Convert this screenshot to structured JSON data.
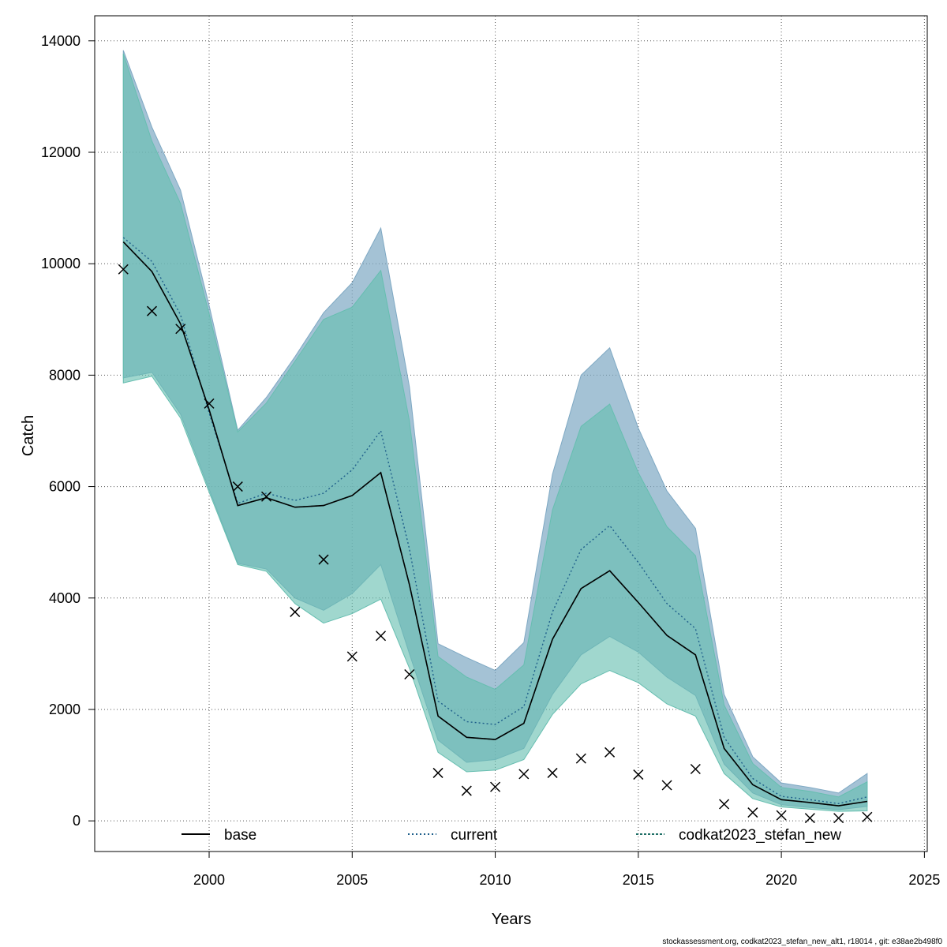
{
  "chart_data": {
    "type": "line",
    "title": "",
    "xlabel": "Years",
    "ylabel": "Catch",
    "xlim": [
      1996,
      2025.1
    ],
    "ylim": [
      -550,
      14450
    ],
    "x_ticks": [
      2000,
      2005,
      2010,
      2015,
      2020,
      2025
    ],
    "y_ticks": [
      0,
      2000,
      4000,
      6000,
      8000,
      10000,
      12000,
      14000
    ],
    "grid": true,
    "legend_position": "bottom",
    "footer_text": "stockassessment.org, codkat2023_stefan_new_alt1, r18014 , git: e38ae2b498f0",
    "colors": {
      "band_current": "#7ea8c3",
      "band_other": "#66beb0",
      "line_current": "#1f5f8b",
      "line_other": "#1f6f66",
      "line_base": "#000000",
      "grid": "#555555"
    },
    "x": [
      1997,
      1998,
      1999,
      2000,
      2001,
      2002,
      2003,
      2004,
      2005,
      2006,
      2007,
      2008,
      2009,
      2010,
      2011,
      2012,
      2013,
      2014,
      2015,
      2016,
      2017,
      2018,
      2019,
      2020,
      2021,
      2022,
      2023
    ],
    "observed": {
      "name": "",
      "values": [
        9900,
        9150,
        8830,
        7490,
        6000,
        5820,
        3750,
        4690,
        2950,
        3320,
        2630,
        860,
        540,
        610,
        840,
        860,
        1120,
        1230,
        830,
        640,
        930,
        300,
        150,
        100,
        50,
        50,
        70
      ]
    },
    "series": [
      {
        "name": "base",
        "style": "solid",
        "values": [
          10390,
          9860,
          8920,
          7380,
          5660,
          5800,
          5630,
          5660,
          5840,
          6250,
          4240,
          1880,
          1500,
          1460,
          1750,
          3260,
          4170,
          4490,
          3920,
          3330,
          2980,
          1300,
          650,
          380,
          330,
          270,
          350
        ],
        "lower": [
          7950,
          8050,
          7300,
          5950,
          4620,
          4520,
          4000,
          3780,
          4080,
          4600,
          3000,
          1450,
          1050,
          1100,
          1300,
          2270,
          2980,
          3310,
          3030,
          2580,
          2250,
          1020,
          500,
          290,
          240,
          200,
          260
        ],
        "upper": [
          13770,
          12200,
          11080,
          9100,
          6980,
          7500,
          8250,
          9000,
          9220,
          9880,
          7180,
          2950,
          2580,
          2360,
          2800,
          5580,
          7080,
          7480,
          6250,
          5280,
          4760,
          2080,
          1030,
          600,
          530,
          430,
          700
        ]
      },
      {
        "name": "current",
        "style": "dotted",
        "values": [
          10470,
          10040,
          9080,
          7320,
          5700,
          5880,
          5750,
          5880,
          6300,
          7000,
          4880,
          2150,
          1780,
          1730,
          2050,
          3750,
          4870,
          5300,
          4640,
          3900,
          3450,
          1500,
          760,
          440,
          380,
          310,
          430
        ],
        "lower": [
          7950,
          8050,
          7300,
          5950,
          4620,
          4520,
          4000,
          3780,
          4080,
          4600,
          3000,
          1450,
          1050,
          1100,
          1300,
          2270,
          2980,
          3310,
          3030,
          2580,
          2250,
          1020,
          500,
          290,
          240,
          200,
          260
        ],
        "upper": [
          13830,
          12450,
          11320,
          9250,
          7010,
          7600,
          8330,
          9120,
          9660,
          10640,
          7790,
          3180,
          2930,
          2700,
          3200,
          6220,
          8000,
          8490,
          7050,
          5920,
          5250,
          2270,
          1150,
          680,
          600,
          500,
          850
        ]
      },
      {
        "name": "codkat2023_stefan_new",
        "style": "dashed",
        "values": [
          10390,
          9860,
          8920,
          7380,
          5660,
          5800,
          5630,
          5660,
          5840,
          6250,
          4240,
          1880,
          1500,
          1460,
          1750,
          3260,
          4170,
          4490,
          3920,
          3330,
          2980,
          1300,
          650,
          380,
          330,
          270,
          350
        ],
        "lower": [
          7860,
          7980,
          7230,
          5900,
          4600,
          4480,
          3900,
          3550,
          3720,
          3980,
          2740,
          1230,
          880,
          910,
          1100,
          1910,
          2460,
          2700,
          2480,
          2100,
          1880,
          850,
          400,
          250,
          210,
          170,
          180
        ],
        "upper": [
          13770,
          12200,
          11080,
          9100,
          6980,
          7500,
          8250,
          9000,
          9220,
          9880,
          7180,
          2950,
          2580,
          2360,
          2800,
          5580,
          7080,
          7480,
          6250,
          5280,
          4760,
          2080,
          1030,
          600,
          530,
          430,
          700
        ]
      }
    ]
  }
}
